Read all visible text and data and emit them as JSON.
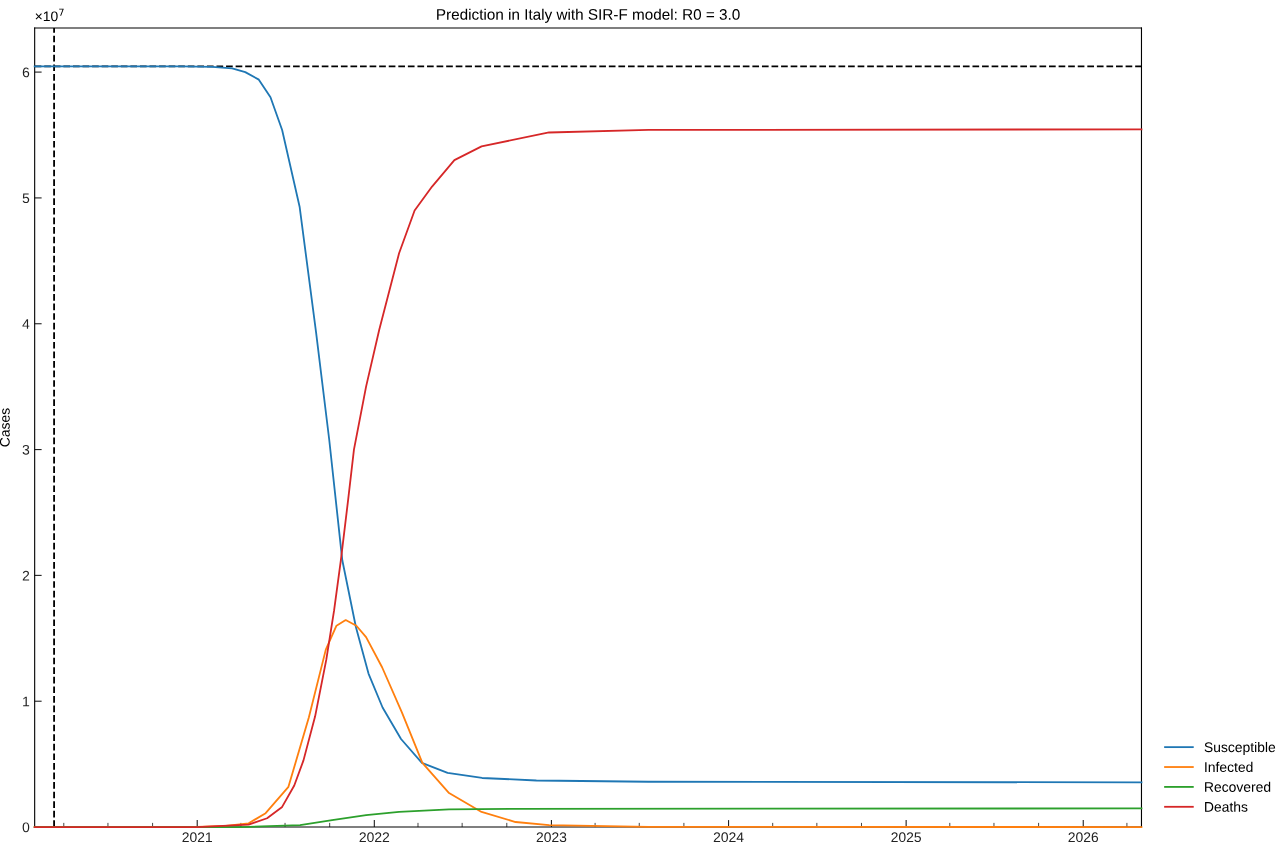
{
  "chart_data": {
    "type": "line",
    "title": "Prediction in Italy with SIR-F model: R0 = 3.0",
    "ylabel": "Cases",
    "annotations": [
      "×10$^{7}$"
    ],
    "xlim": [
      "2020-02-01",
      "2026-05-01"
    ],
    "xticks": [
      {
        "value": "2021",
        "label": "2021"
      },
      {
        "value": "2022",
        "label": "2022"
      },
      {
        "value": "2023",
        "label": "2023"
      },
      {
        "value": "2024",
        "label": "2024"
      },
      {
        "value": "2025",
        "label": "2025"
      },
      {
        "value": "2026",
        "label": "2026"
      }
    ],
    "ylim": [
      0,
      6.35
    ],
    "yticks": [
      0,
      1,
      2,
      3,
      4,
      5,
      6
    ],
    "grid": false,
    "legend": "bottom right",
    "line_style": "solid",
    "marker": "none",
    "ref_lines": [
      {
        "axis": "y",
        "value": 6.046,
        "color": "#000000",
        "line_style": "dashed"
      },
      {
        "axis": "x",
        "value": "2020-03-12",
        "color": "#000000",
        "line_style": "dashed"
      }
    ],
    "series": [
      {
        "name": "Susceptible",
        "color": "#1f77b4",
        "x": [
          "2020-02-01",
          "2020-12-01",
          "2021-02-01",
          "2021-03-14",
          "2021-04-10",
          "2021-05-08",
          "2021-06-01",
          "2021-06-25",
          "2021-07-31",
          "2021-09-03",
          "2021-09-30",
          "2021-10-27",
          "2021-11-24",
          "2021-12-20",
          "2022-01-18",
          "2022-02-25",
          "2022-04-09",
          "2022-06-01",
          "2022-08-11",
          "2022-12-01",
          "2023-07-20",
          "2026-05-01"
        ],
        "values": [
          6.046,
          6.045,
          6.042,
          6.03,
          6.0,
          5.94,
          5.8,
          5.54,
          4.93,
          3.93,
          3.08,
          2.12,
          1.59,
          1.22,
          0.95,
          0.7,
          0.51,
          0.43,
          0.39,
          0.37,
          0.36,
          0.355
        ]
      },
      {
        "name": "Infected",
        "color": "#ff7f0e",
        "x": [
          "2020-02-01",
          "2021-01-01",
          "2021-03-01",
          "2021-04-17",
          "2021-05-22",
          "2021-07-08",
          "2021-08-19",
          "2021-09-23",
          "2021-10-15",
          "2021-11-03",
          "2021-11-25",
          "2021-12-15",
          "2022-01-17",
          "2022-02-27",
          "2022-04-10",
          "2022-06-04",
          "2022-08-10",
          "2022-10-19",
          "2022-12-27",
          "2023-07-20",
          "2026-05-01"
        ],
        "values": [
          0,
          0.002,
          0.01,
          0.03,
          0.11,
          0.32,
          0.87,
          1.41,
          1.6,
          1.645,
          1.6,
          1.51,
          1.27,
          0.91,
          0.51,
          0.27,
          0.12,
          0.04,
          0.016,
          0.002,
          0
        ]
      },
      {
        "name": "Recovered",
        "color": "#2ca02c",
        "x": [
          "2020-02-01",
          "2021-04-01",
          "2021-08-01",
          "2021-10-06",
          "2021-12-15",
          "2022-02-21",
          "2022-06-04",
          "2022-10-19",
          "2026-05-01"
        ],
        "values": [
          0,
          0,
          0.016,
          0.055,
          0.095,
          0.12,
          0.14,
          0.145,
          0.148
        ]
      },
      {
        "name": "Deaths",
        "color": "#d62728",
        "x": [
          "2020-02-01",
          "2021-01-01",
          "2021-04-17",
          "2021-05-25",
          "2021-06-25",
          "2021-07-20",
          "2021-08-08",
          "2021-09-01",
          "2021-09-24",
          "2021-10-10",
          "2021-10-24",
          "2021-11-08",
          "2021-11-20",
          "2021-12-15",
          "2022-01-11",
          "2022-02-21",
          "2022-03-25",
          "2022-04-30",
          "2022-06-15",
          "2022-08-10",
          "2022-12-27",
          "2023-07-20",
          "2026-05-01"
        ],
        "values": [
          0,
          0,
          0.02,
          0.07,
          0.16,
          0.33,
          0.53,
          0.88,
          1.33,
          1.72,
          2.12,
          2.6,
          3.0,
          3.5,
          3.95,
          4.56,
          4.9,
          5.09,
          5.3,
          5.41,
          5.52,
          5.54,
          5.545
        ]
      }
    ]
  }
}
